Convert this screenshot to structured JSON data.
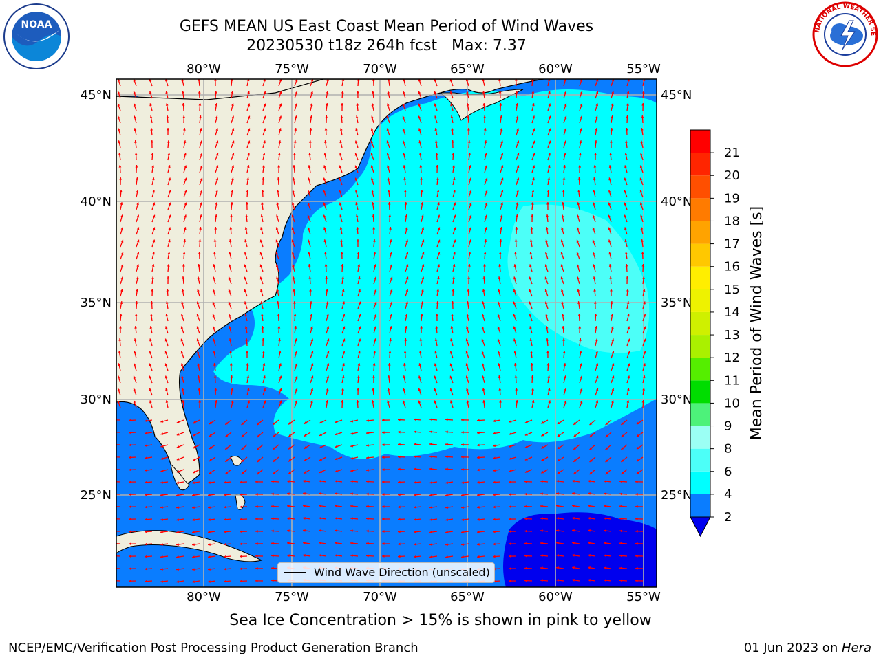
{
  "title": {
    "line1": "GEFS MEAN US East Coast Mean Period of Wind Waves",
    "line2": "20230530 t18z 264h fcst   Max: 7.37"
  },
  "map": {
    "lon_ticks": [
      "80°W",
      "75°W",
      "70°W",
      "65°W",
      "60°W",
      "55°W"
    ],
    "lat_ticks_left": [
      "45°N",
      "40°N",
      "35°N",
      "30°N",
      "25°N"
    ],
    "lat_ticks_right": [
      "45°N",
      "40°N",
      "35°N",
      "30°N",
      "25°N"
    ],
    "legend_label": "Wind Wave Direction (unscaled)",
    "land_color": "#efeedd",
    "arrow_color": "#ff0000"
  },
  "colorbar": {
    "label": "Mean Period of Wind Waves [s]",
    "tick_labels": [
      "2",
      "4",
      "6",
      "8",
      "9",
      "10",
      "11",
      "12",
      "13",
      "14",
      "15",
      "16",
      "17",
      "18",
      "19",
      "20",
      "21"
    ],
    "colors": [
      "#0000ee",
      "#0a7dff",
      "#00ffff",
      "#4cfff8",
      "#9bfff4",
      "#4df27a",
      "#00dd00",
      "#55ee00",
      "#aaf000",
      "#cff000",
      "#eef200",
      "#ffee00",
      "#ffc800",
      "#ffa300",
      "#ff7b00",
      "#ff4f00",
      "#ff2500",
      "#ff0000"
    ]
  },
  "caption": "Sea Ice Concentration > 15% is shown in pink to yellow",
  "footer": {
    "left": "NCEP/EMC/Verification Post Processing Product Generation Branch",
    "right_prefix": "01 Jun 2023 on ",
    "right_host": "Hera"
  },
  "logos": {
    "noaa_text": "NOAA",
    "nws_text": "NATIONAL WEATHER SERVICE"
  }
}
